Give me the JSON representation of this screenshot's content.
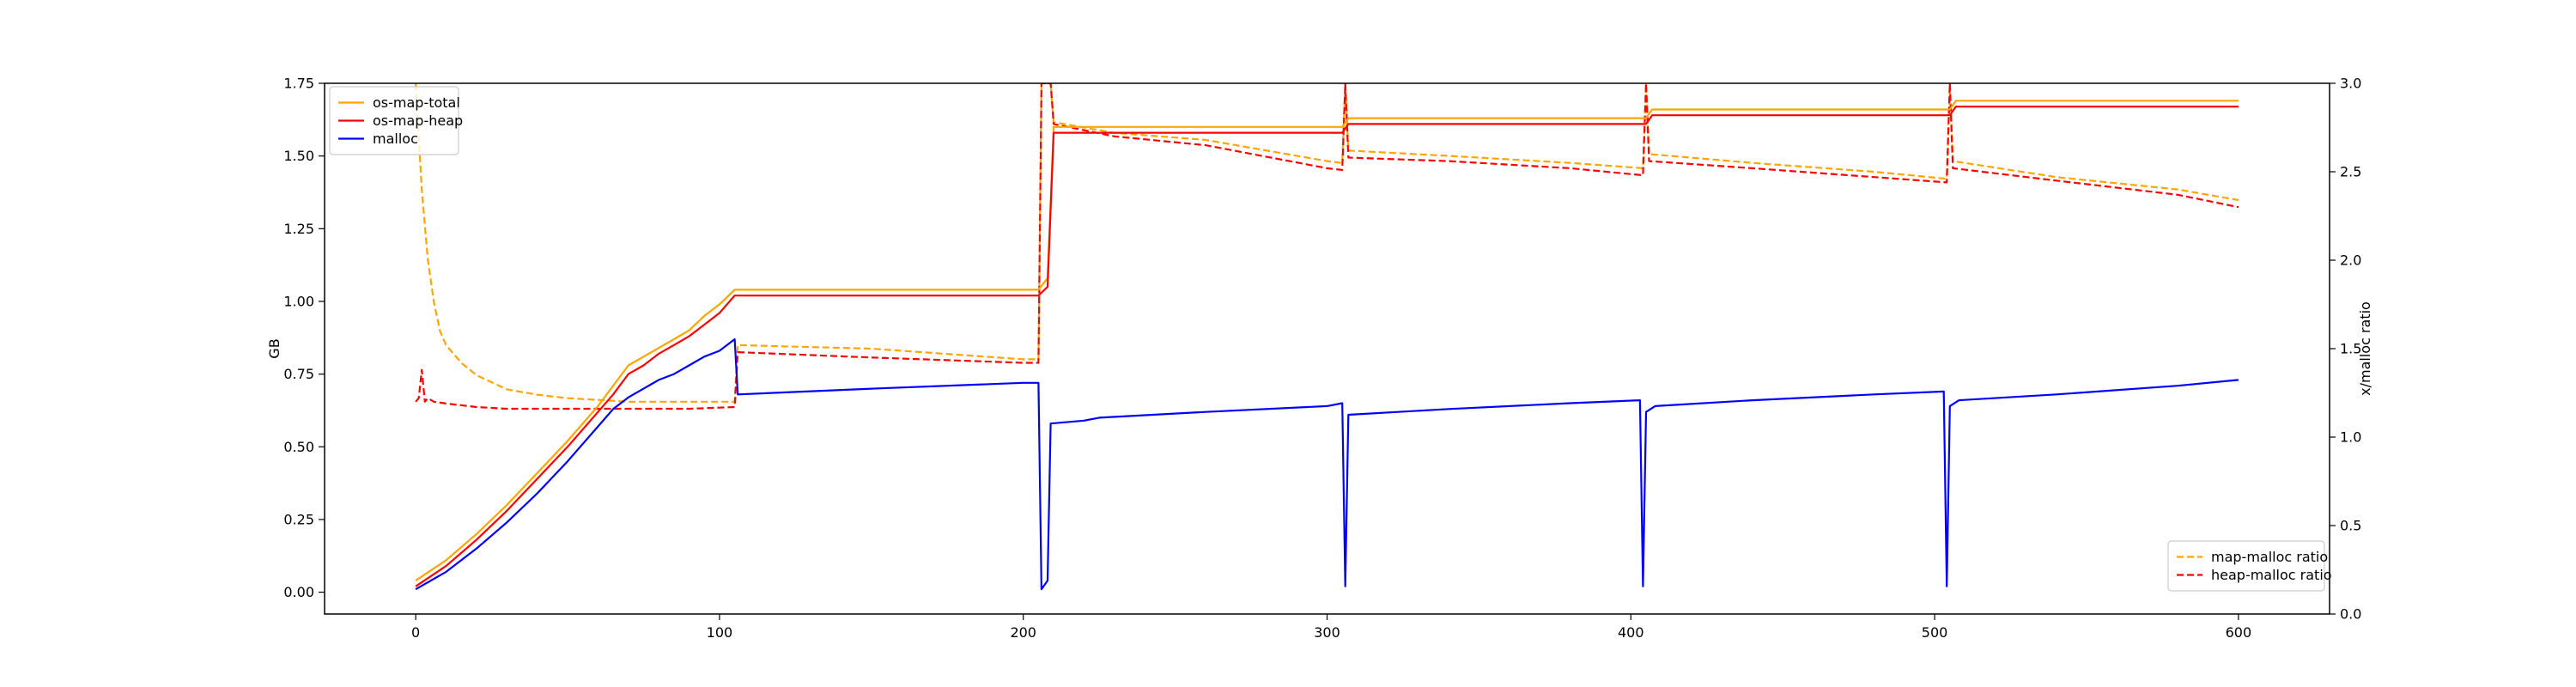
{
  "chart_data": {
    "type": "line",
    "title": "",
    "xlabel": "",
    "ylabel_left": "GB",
    "ylabel_right": "x/malloc ratio",
    "xlim": [
      -30,
      630
    ],
    "ylim_left": [
      -0.075,
      1.75
    ],
    "ylim_right": [
      0.0,
      3.0
    ],
    "xticks": [
      0,
      100,
      200,
      300,
      400,
      500,
      600
    ],
    "yticks_left": [
      0.0,
      0.25,
      0.5,
      0.75,
      1.0,
      1.25,
      1.5,
      1.75
    ],
    "yticks_left_labels": [
      "0.00",
      "0.25",
      "0.50",
      "0.75",
      "1.00",
      "1.25",
      "1.50",
      "1.75"
    ],
    "yticks_right": [
      0.0,
      0.5,
      1.0,
      1.5,
      2.0,
      2.5,
      3.0
    ],
    "yticks_right_labels": [
      "0.0",
      "0.5",
      "1.0",
      "1.5",
      "2.0",
      "2.5",
      "3.0"
    ],
    "grid": false,
    "legend_left": {
      "placement": "upper-left",
      "entries": [
        "os-map-total",
        "os-map-heap",
        "malloc"
      ]
    },
    "legend_right": {
      "placement": "lower-right",
      "entries": [
        "map-malloc ratio",
        "heap-malloc ratio"
      ]
    },
    "series_left": [
      {
        "name": "os-map-total",
        "color": "#ffa500",
        "style": "solid",
        "points": [
          [
            0,
            0.04
          ],
          [
            10,
            0.11
          ],
          [
            20,
            0.2
          ],
          [
            30,
            0.3
          ],
          [
            40,
            0.41
          ],
          [
            50,
            0.52
          ],
          [
            60,
            0.64
          ],
          [
            65,
            0.71
          ],
          [
            70,
            0.78
          ],
          [
            75,
            0.81
          ],
          [
            80,
            0.84
          ],
          [
            85,
            0.87
          ],
          [
            90,
            0.9
          ],
          [
            95,
            0.95
          ],
          [
            100,
            0.99
          ],
          [
            105,
            1.04
          ],
          [
            200,
            1.04
          ],
          [
            205,
            1.04
          ],
          [
            208,
            1.08
          ],
          [
            210,
            1.6
          ],
          [
            305,
            1.6
          ],
          [
            307,
            1.63
          ],
          [
            405,
            1.63
          ],
          [
            407,
            1.66
          ],
          [
            505,
            1.66
          ],
          [
            507,
            1.69
          ],
          [
            600,
            1.69
          ]
        ]
      },
      {
        "name": "os-map-heap",
        "color": "#ff0000",
        "style": "solid",
        "points": [
          [
            0,
            0.02
          ],
          [
            10,
            0.09
          ],
          [
            20,
            0.18
          ],
          [
            30,
            0.28
          ],
          [
            40,
            0.39
          ],
          [
            50,
            0.5
          ],
          [
            60,
            0.62
          ],
          [
            65,
            0.68
          ],
          [
            70,
            0.75
          ],
          [
            75,
            0.78
          ],
          [
            80,
            0.82
          ],
          [
            85,
            0.85
          ],
          [
            90,
            0.88
          ],
          [
            95,
            0.92
          ],
          [
            100,
            0.96
          ],
          [
            105,
            1.02
          ],
          [
            200,
            1.02
          ],
          [
            205,
            1.02
          ],
          [
            208,
            1.05
          ],
          [
            210,
            1.58
          ],
          [
            305,
            1.58
          ],
          [
            307,
            1.61
          ],
          [
            405,
            1.61
          ],
          [
            407,
            1.64
          ],
          [
            505,
            1.64
          ],
          [
            507,
            1.67
          ],
          [
            600,
            1.67
          ]
        ]
      },
      {
        "name": "malloc",
        "color": "#0000ff",
        "style": "solid",
        "points": [
          [
            0,
            0.01
          ],
          [
            10,
            0.07
          ],
          [
            20,
            0.15
          ],
          [
            30,
            0.24
          ],
          [
            40,
            0.34
          ],
          [
            50,
            0.45
          ],
          [
            60,
            0.57
          ],
          [
            65,
            0.63
          ],
          [
            70,
            0.67
          ],
          [
            75,
            0.7
          ],
          [
            80,
            0.73
          ],
          [
            85,
            0.75
          ],
          [
            90,
            0.78
          ],
          [
            95,
            0.81
          ],
          [
            100,
            0.83
          ],
          [
            105,
            0.87
          ],
          [
            106,
            0.68
          ],
          [
            150,
            0.7
          ],
          [
            200,
            0.72
          ],
          [
            205,
            0.72
          ],
          [
            206,
            0.01
          ],
          [
            208,
            0.04
          ],
          [
            209,
            0.58
          ],
          [
            220,
            0.59
          ],
          [
            225,
            0.6
          ],
          [
            260,
            0.62
          ],
          [
            300,
            0.64
          ],
          [
            305,
            0.65
          ],
          [
            306,
            0.02
          ],
          [
            307,
            0.61
          ],
          [
            340,
            0.63
          ],
          [
            380,
            0.65
          ],
          [
            403,
            0.66
          ],
          [
            404,
            0.02
          ],
          [
            405,
            0.62
          ],
          [
            408,
            0.64
          ],
          [
            440,
            0.66
          ],
          [
            480,
            0.68
          ],
          [
            503,
            0.69
          ],
          [
            504,
            0.02
          ],
          [
            505,
            0.64
          ],
          [
            508,
            0.66
          ],
          [
            540,
            0.68
          ],
          [
            580,
            0.71
          ],
          [
            600,
            0.73
          ]
        ]
      }
    ],
    "series_right": [
      {
        "name": "map-malloc ratio",
        "color": "#ffa500",
        "style": "dashed",
        "points": [
          [
            0,
            3.0
          ],
          [
            2,
            2.4
          ],
          [
            4,
            2.0
          ],
          [
            6,
            1.76
          ],
          [
            8,
            1.6
          ],
          [
            10,
            1.52
          ],
          [
            15,
            1.42
          ],
          [
            20,
            1.35
          ],
          [
            25,
            1.31
          ],
          [
            30,
            1.27
          ],
          [
            40,
            1.24
          ],
          [
            50,
            1.22
          ],
          [
            60,
            1.21
          ],
          [
            70,
            1.2
          ],
          [
            80,
            1.2
          ],
          [
            90,
            1.2
          ],
          [
            105,
            1.2
          ],
          [
            106,
            1.52
          ],
          [
            150,
            1.5
          ],
          [
            200,
            1.44
          ],
          [
            205,
            1.44
          ],
          [
            206,
            3.0
          ],
          [
            209,
            3.0
          ],
          [
            210,
            2.78
          ],
          [
            230,
            2.72
          ],
          [
            260,
            2.68
          ],
          [
            300,
            2.56
          ],
          [
            305,
            2.55
          ],
          [
            306,
            3.0
          ],
          [
            307,
            2.62
          ],
          [
            340,
            2.59
          ],
          [
            380,
            2.55
          ],
          [
            404,
            2.52
          ],
          [
            405,
            3.0
          ],
          [
            406,
            2.6
          ],
          [
            440,
            2.55
          ],
          [
            480,
            2.5
          ],
          [
            504,
            2.46
          ],
          [
            505,
            3.0
          ],
          [
            506,
            2.56
          ],
          [
            540,
            2.47
          ],
          [
            580,
            2.4
          ],
          [
            600,
            2.34
          ]
        ]
      },
      {
        "name": "heap-malloc ratio",
        "color": "#ff0000",
        "style": "dashed",
        "points": [
          [
            0,
            1.2
          ],
          [
            1,
            1.22
          ],
          [
            2,
            1.38
          ],
          [
            3,
            1.2
          ],
          [
            4,
            1.22
          ],
          [
            6,
            1.2
          ],
          [
            10,
            1.19
          ],
          [
            20,
            1.17
          ],
          [
            30,
            1.16
          ],
          [
            40,
            1.16
          ],
          [
            50,
            1.16
          ],
          [
            60,
            1.16
          ],
          [
            70,
            1.16
          ],
          [
            80,
            1.16
          ],
          [
            90,
            1.16
          ],
          [
            105,
            1.17
          ],
          [
            106,
            1.48
          ],
          [
            150,
            1.45
          ],
          [
            200,
            1.42
          ],
          [
            205,
            1.42
          ],
          [
            206,
            3.0
          ],
          [
            209,
            3.0
          ],
          [
            210,
            2.77
          ],
          [
            230,
            2.7
          ],
          [
            260,
            2.65
          ],
          [
            300,
            2.52
          ],
          [
            305,
            2.51
          ],
          [
            306,
            3.0
          ],
          [
            307,
            2.58
          ],
          [
            340,
            2.56
          ],
          [
            380,
            2.52
          ],
          [
            404,
            2.48
          ],
          [
            405,
            3.0
          ],
          [
            406,
            2.56
          ],
          [
            440,
            2.52
          ],
          [
            480,
            2.47
          ],
          [
            504,
            2.44
          ],
          [
            505,
            3.0
          ],
          [
            506,
            2.52
          ],
          [
            540,
            2.45
          ],
          [
            580,
            2.37
          ],
          [
            600,
            2.3
          ]
        ]
      }
    ]
  }
}
